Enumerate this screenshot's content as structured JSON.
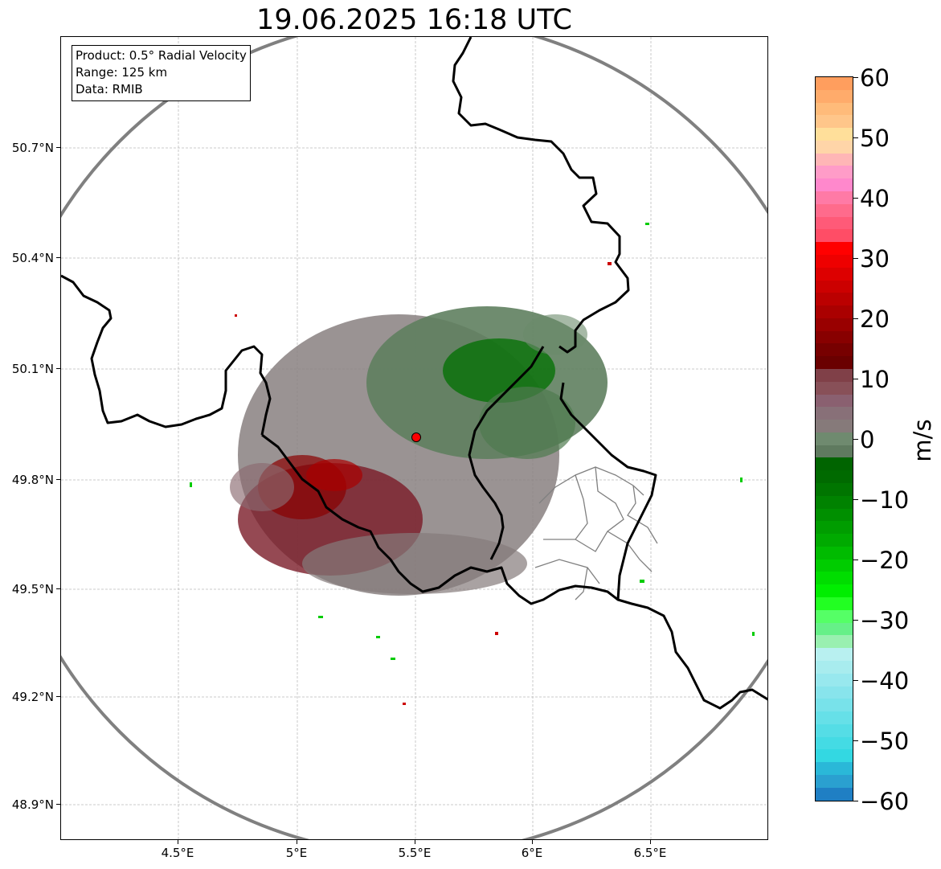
{
  "title": "19.06.2025 16:18 UTC",
  "info": {
    "product": "Product: 0.5° Radial Velocity",
    "range": "Range: 125 km",
    "data": "Data: RMIB"
  },
  "axes": {
    "y_ticks": [
      "50.7°N",
      "50.4°N",
      "50.1°N",
      "49.8°N",
      "49.5°N",
      "49.2°N",
      "48.9°N"
    ],
    "x_ticks": [
      "4.5°E",
      "5°E",
      "5.5°E",
      "6°E",
      "6.5°E"
    ]
  },
  "colorbar": {
    "label": "m/s",
    "ticks": [
      "60",
      "50",
      "40",
      "30",
      "20",
      "10",
      "0",
      "−10",
      "−20",
      "−30",
      "−40",
      "−50",
      "−60"
    ],
    "range": [
      -60,
      60
    ],
    "colors_top_to_bottom": [
      "#ff9e5e",
      "#ffab6b",
      "#ffbb7a",
      "#ffc68a",
      "#ffdf9a",
      "#ffd5a8",
      "#ffb6b6",
      "#ff9cc8",
      "#ff88cc",
      "#ff7aa6",
      "#ff6b8c",
      "#ff5a78",
      "#ff4d66",
      "#ff0000",
      "#ee0000",
      "#dd0000",
      "#cc0000",
      "#bb0000",
      "#aa0000",
      "#990000",
      "#880000",
      "#770000",
      "#6a0000",
      "#804048",
      "#885058",
      "#8a6070",
      "#887078",
      "#867a7a",
      "#6f8a6f",
      "#5f7a5f",
      "#006400",
      "#006a00",
      "#007500",
      "#008200",
      "#008f00",
      "#009d00",
      "#00aa00",
      "#00bb00",
      "#00cc00",
      "#00dd00",
      "#00ee00",
      "#22ff22",
      "#55ff66",
      "#66f088",
      "#99f0b0",
      "#b8f0f0",
      "#a8ecee",
      "#98e8ee",
      "#88e4ec",
      "#78e2ea",
      "#66e0e8",
      "#55dde6",
      "#44dbe4",
      "#33d8e2",
      "#2ab8d8",
      "#2aa0d0",
      "#1f7fc4"
    ]
  },
  "colors": {
    "border": "#000000",
    "range_ring": "#808080",
    "grid": "#bbbbbb",
    "radar_site": "#ff0000"
  },
  "map": {
    "radar_site_icon": "radar-site-marker-icon"
  }
}
